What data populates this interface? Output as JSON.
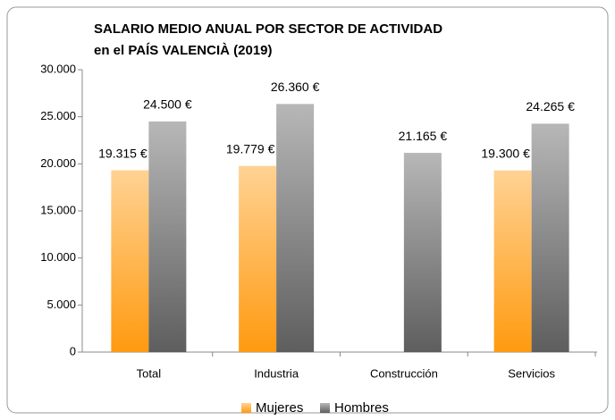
{
  "chart_data": {
    "type": "bar",
    "title": "SALARIO MEDIO ANUAL POR SECTOR DE ACTIVIDAD",
    "subtitle": "en el PAÍS VALENCIÀ (2019)",
    "categories": [
      "Total",
      "Industria",
      "Construcción",
      "Servicios"
    ],
    "series": [
      {
        "name": "Mujeres",
        "color": "#ff9a10",
        "values": [
          19315,
          19779,
          null,
          19300
        ],
        "value_labels": [
          "19.315 €",
          "19.779 €",
          null,
          "19.300 €"
        ]
      },
      {
        "name": "Hombres",
        "color": "#5e5e5e",
        "values": [
          24500,
          26360,
          21165,
          24265
        ],
        "value_labels": [
          "24.500 €",
          "26.360 €",
          "21.165 €",
          "24.265 €"
        ]
      }
    ],
    "ylim": [
      0,
      30000
    ],
    "yticks": [
      0,
      {
        "value": 5000,
        "label": "5.000"
      },
      {
        "value": 10000,
        "label": "10.000"
      },
      {
        "value": 15000,
        "label": "15.000"
      },
      {
        "value": 20000,
        "label": "20.000"
      },
      {
        "value": 25000,
        "label": "25.000"
      },
      {
        "value": 30000,
        "label": "30.000"
      }
    ],
    "grid": false,
    "legend": "bottom"
  }
}
